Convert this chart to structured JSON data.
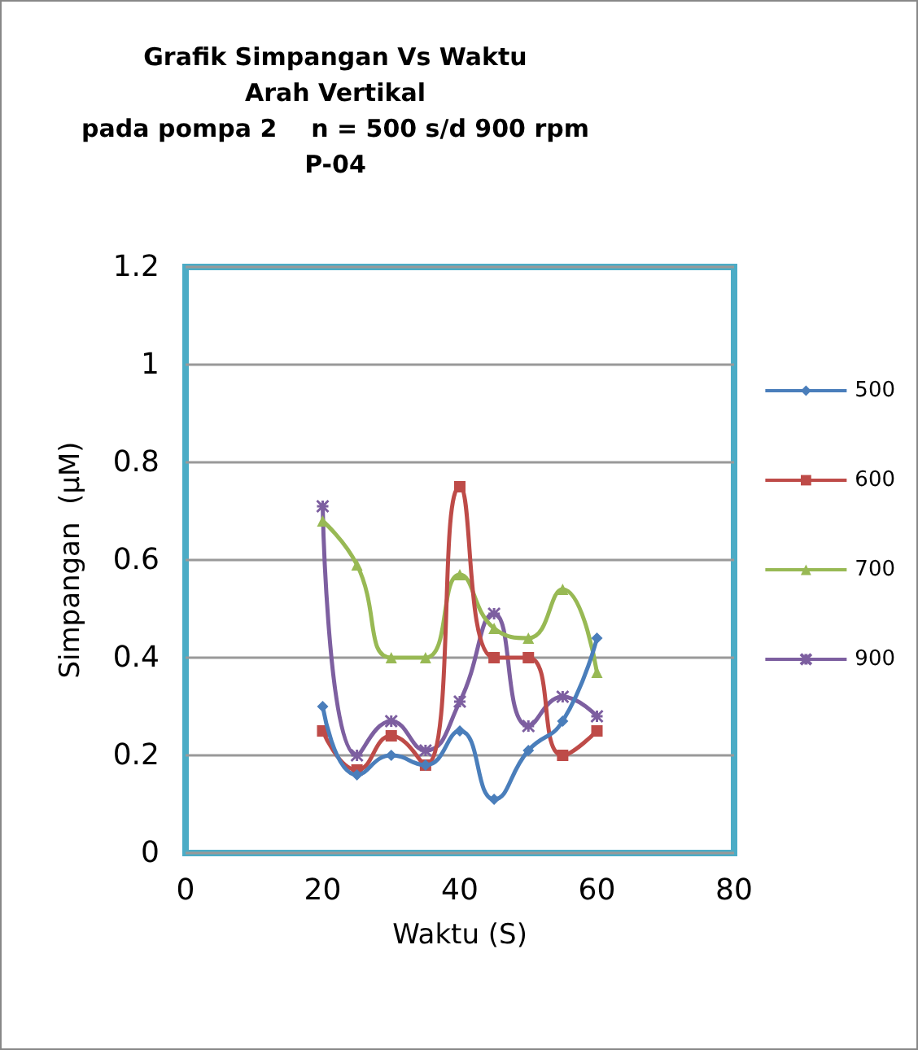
{
  "chart_data": {
    "type": "line",
    "title": "Grafik Simpangan Vs Waktu\nArah Vertikal\npada pompa 2    n = 500 s/d 900 rpm\nP-04",
    "xlabel": "Waktu (S)",
    "ylabel": "Simpangan  (µM)",
    "x": [
      20,
      25,
      30,
      35,
      40,
      45,
      50,
      55,
      60
    ],
    "series": [
      {
        "name": "500",
        "color": "#4a7ebb",
        "marker": "diamond",
        "values": [
          0.3,
          0.16,
          0.2,
          0.18,
          0.25,
          0.11,
          0.21,
          0.27,
          0.44
        ]
      },
      {
        "name": "600",
        "color": "#be4b48",
        "marker": "square",
        "values": [
          0.25,
          0.17,
          0.24,
          0.18,
          0.75,
          0.4,
          0.4,
          0.2,
          0.25
        ]
      },
      {
        "name": "700",
        "color": "#98b954",
        "marker": "triangle",
        "values": [
          0.68,
          0.59,
          0.4,
          0.4,
          0.57,
          0.46,
          0.44,
          0.54,
          0.37
        ]
      },
      {
        "name": "900",
        "color": "#7d5fa0",
        "marker": "cross",
        "values": [
          0.71,
          0.2,
          0.27,
          0.21,
          0.31,
          0.49,
          0.26,
          0.32,
          0.28
        ]
      }
    ],
    "xlim": [
      0,
      80
    ],
    "xticks": [
      0,
      20,
      40,
      60,
      80
    ],
    "ylim": [
      0,
      1.2
    ],
    "yticks": [
      0,
      0.2,
      0.4,
      0.6,
      0.8,
      1,
      1.2
    ],
    "grid": "y",
    "legend": "right",
    "line_style": "solid"
  }
}
